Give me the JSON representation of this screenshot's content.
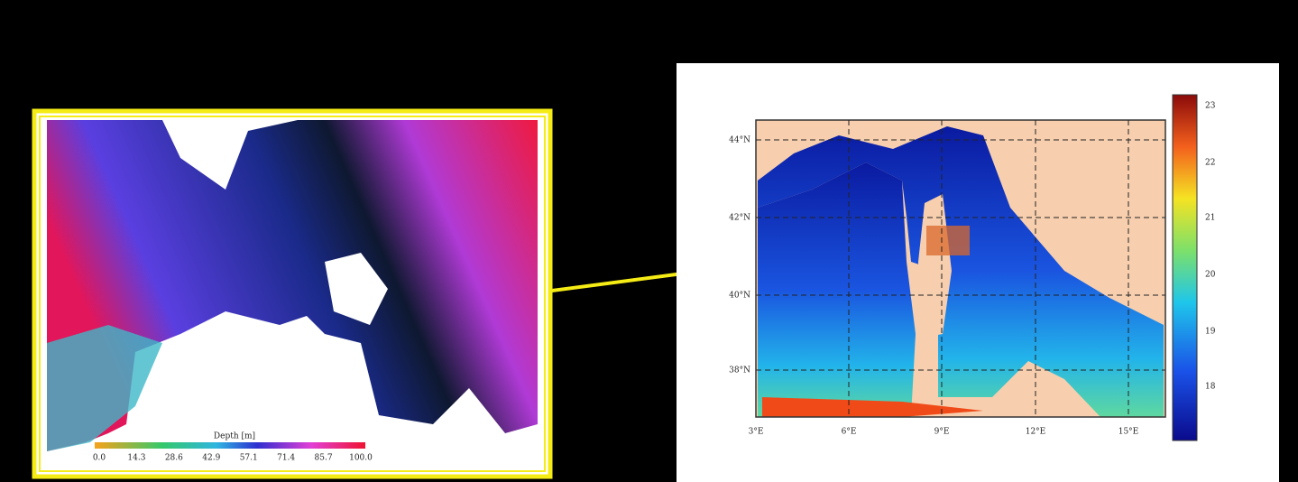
{
  "left_map": {
    "depth_scale": {
      "title": "Depth [m]",
      "ticks": [
        "0.0",
        "14.3",
        "28.6",
        "42.9",
        "57.1",
        "71.4",
        "85.7",
        "100.0"
      ]
    }
  },
  "right_map": {
    "lat_labels": [
      "44°N",
      "42°N",
      "40°N",
      "38°N"
    ],
    "lon_labels": [
      "3°E",
      "6°E",
      "9°E",
      "12°E",
      "15°E"
    ],
    "colorbar_ticks": [
      "23",
      "22",
      "21",
      "20",
      "19",
      "18"
    ]
  }
}
